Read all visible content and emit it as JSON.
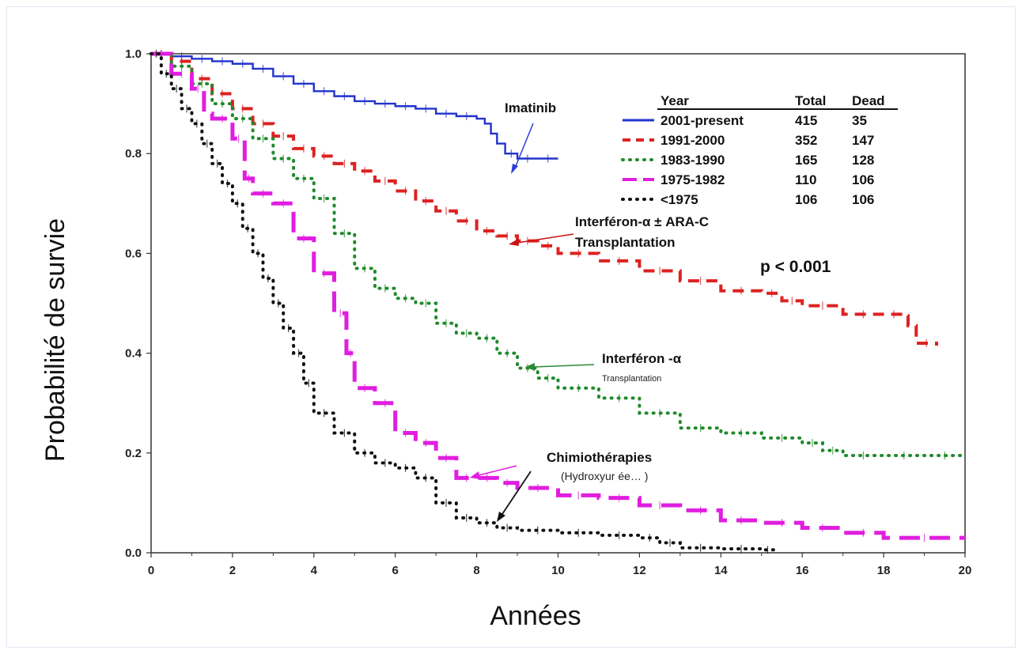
{
  "chart_data": {
    "type": "line",
    "xlabel": "Années",
    "ylabel": "Probabilité de survie",
    "xlim": [
      0,
      20
    ],
    "ylim": [
      0,
      1.0
    ],
    "x_ticks": [
      "0",
      "2",
      "4",
      "6",
      "8",
      "10",
      "12",
      "14",
      "16",
      "18",
      "20"
    ],
    "y_ticks": [
      "0.0",
      "0.2",
      "0.4",
      "0.6",
      "0.8",
      "1.0"
    ],
    "grid": false,
    "legend_position": "top-right",
    "legend_headers": [
      "Year",
      "Total",
      "Dead"
    ],
    "series": [
      {
        "name": "2001-present",
        "total": "415",
        "dead": "35",
        "color": "#2233cc",
        "style": "solid",
        "x": [
          0,
          0.5,
          1,
          1.5,
          2,
          2.5,
          3,
          3.5,
          4,
          4.5,
          5,
          5.5,
          6,
          6.5,
          7,
          7.5,
          8,
          8.2,
          8.35,
          8.5,
          8.7,
          9,
          9.5,
          10
        ],
        "y": [
          1.0,
          0.995,
          0.99,
          0.985,
          0.98,
          0.97,
          0.955,
          0.94,
          0.925,
          0.915,
          0.905,
          0.9,
          0.895,
          0.89,
          0.88,
          0.875,
          0.87,
          0.86,
          0.84,
          0.82,
          0.8,
          0.79,
          0.79,
          0.79
        ]
      },
      {
        "name": "1991-2000",
        "total": "352",
        "dead": "147",
        "color": "#dd2222",
        "style": "dashed",
        "x": [
          0,
          0.5,
          1,
          1.5,
          2,
          2.5,
          3,
          3.5,
          4,
          4.5,
          5,
          5.5,
          6,
          6.5,
          7,
          7.5,
          8,
          8.5,
          9,
          9.5,
          10,
          11,
          12,
          13,
          14,
          15,
          15.5,
          16,
          17,
          18,
          18.5,
          18.6,
          18.8,
          19.3
        ],
        "y": [
          1.0,
          0.985,
          0.95,
          0.92,
          0.89,
          0.86,
          0.835,
          0.81,
          0.795,
          0.78,
          0.765,
          0.745,
          0.725,
          0.705,
          0.685,
          0.665,
          0.645,
          0.635,
          0.625,
          0.615,
          0.6,
          0.585,
          0.565,
          0.545,
          0.525,
          0.52,
          0.505,
          0.495,
          0.478,
          0.478,
          0.475,
          0.455,
          0.42,
          0.415
        ]
      },
      {
        "name": "1983-1990",
        "total": "165",
        "dead": "128",
        "color": "#1f8a2a",
        "style": "dotted",
        "x": [
          0,
          0.5,
          1,
          1.5,
          2,
          2.5,
          3,
          3.5,
          4,
          4.5,
          5,
          5.5,
          6,
          6.5,
          7,
          7.5,
          8,
          8.5,
          9,
          9.5,
          10,
          11,
          12,
          13,
          14,
          15,
          16,
          16.5,
          17,
          18,
          19,
          20
        ],
        "y": [
          1.0,
          0.975,
          0.94,
          0.9,
          0.87,
          0.83,
          0.79,
          0.75,
          0.71,
          0.64,
          0.57,
          0.53,
          0.51,
          0.5,
          0.46,
          0.44,
          0.43,
          0.4,
          0.37,
          0.35,
          0.33,
          0.31,
          0.28,
          0.25,
          0.24,
          0.23,
          0.22,
          0.205,
          0.195,
          0.195,
          0.195,
          0.195
        ]
      },
      {
        "name": "1975-1982",
        "total": "110",
        "dead": "106",
        "color": "#e01ee0",
        "style": "long-dash",
        "x": [
          0,
          0.5,
          1,
          1.3,
          1.5,
          2,
          2.3,
          2.5,
          3,
          3.5,
          4,
          4.5,
          4.8,
          5,
          5.5,
          6,
          6.5,
          7,
          7.5,
          8,
          8.5,
          9,
          10,
          11,
          12,
          13,
          14,
          15,
          16,
          17,
          18,
          20
        ],
        "y": [
          1.0,
          0.96,
          0.93,
          0.88,
          0.87,
          0.83,
          0.75,
          0.72,
          0.7,
          0.63,
          0.56,
          0.48,
          0.4,
          0.33,
          0.3,
          0.24,
          0.22,
          0.19,
          0.15,
          0.15,
          0.14,
          0.13,
          0.115,
          0.11,
          0.095,
          0.085,
          0.065,
          0.06,
          0.05,
          0.04,
          0.03,
          0.03
        ]
      },
      {
        "name": "<1975",
        "total": "106",
        "dead": "106",
        "color": "#111111",
        "style": "dotted",
        "x": [
          0,
          0.25,
          0.5,
          0.75,
          1,
          1.25,
          1.5,
          1.75,
          2,
          2.25,
          2.5,
          2.75,
          3,
          3.25,
          3.5,
          3.75,
          4,
          4.5,
          5,
          5.5,
          6,
          6.5,
          7,
          7.5,
          8,
          8.5,
          9,
          10,
          11,
          12,
          12.5,
          13,
          14,
          15,
          15.3
        ],
        "y": [
          1.0,
          0.96,
          0.93,
          0.89,
          0.86,
          0.82,
          0.78,
          0.74,
          0.7,
          0.65,
          0.6,
          0.55,
          0.5,
          0.45,
          0.4,
          0.34,
          0.28,
          0.24,
          0.2,
          0.18,
          0.17,
          0.15,
          0.1,
          0.07,
          0.06,
          0.05,
          0.045,
          0.04,
          0.035,
          0.03,
          0.02,
          0.01,
          0.008,
          0.006,
          0.005
        ]
      }
    ],
    "p_value": "p < 0.001",
    "annotations": [
      {
        "main": "Imatinib",
        "sub": ""
      },
      {
        "main": "Interféron-α ± ARA-C",
        "sub": "Transplantation"
      },
      {
        "main": "Interféron -α",
        "sub": "Transplantation"
      },
      {
        "main": "Chimiothérapies",
        "sub": "(Hydroxyur ée… )"
      }
    ]
  }
}
